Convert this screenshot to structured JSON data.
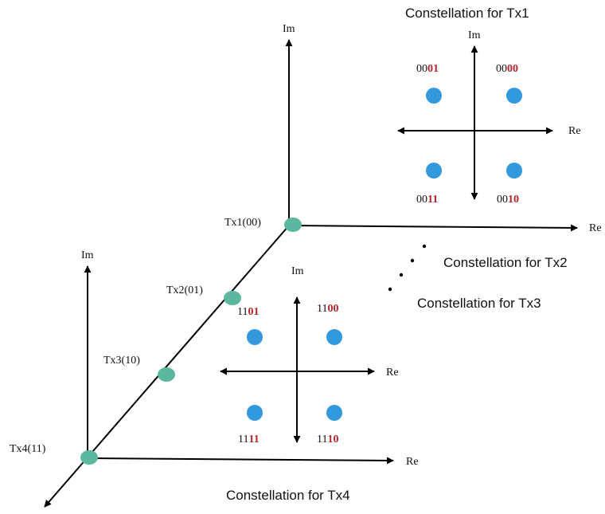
{
  "colors": {
    "axis": "#000000",
    "tx_point": "#5bb89f",
    "constellation_point": "#3399dd",
    "bit_highlight": "#b3272b",
    "text": "#111111"
  },
  "main_axes": {
    "im_label": "Im",
    "re_label": "Re",
    "left_im_label": "Im",
    "left_re_label": "Re"
  },
  "tx_points": [
    {
      "label": "Tx1(00)"
    },
    {
      "label": "Tx2(01)"
    },
    {
      "label": "Tx3(10)"
    },
    {
      "label": "Tx4(11)"
    }
  ],
  "tx1_constellation": {
    "title": "Constellation for Tx1",
    "im_label": "Im",
    "re_label": "Re",
    "symbols": [
      {
        "prefix": "00",
        "suffix": "01"
      },
      {
        "prefix": "00",
        "suffix": "00"
      },
      {
        "prefix": "00",
        "suffix": "11"
      },
      {
        "prefix": "00",
        "suffix": "10"
      }
    ]
  },
  "tx4_constellation": {
    "title": "Constellation for Tx4",
    "im_label": "Im",
    "re_label": "Re",
    "symbols": [
      {
        "prefix": "11",
        "suffix": "01"
      },
      {
        "prefix": "11",
        "suffix": "00"
      },
      {
        "prefix": "11",
        "suffix": "11"
      },
      {
        "prefix": "11",
        "suffix": "10"
      }
    ]
  },
  "other_constellations": [
    {
      "title": "Constellation for Tx2"
    },
    {
      "title": "Constellation for Tx3"
    }
  ]
}
